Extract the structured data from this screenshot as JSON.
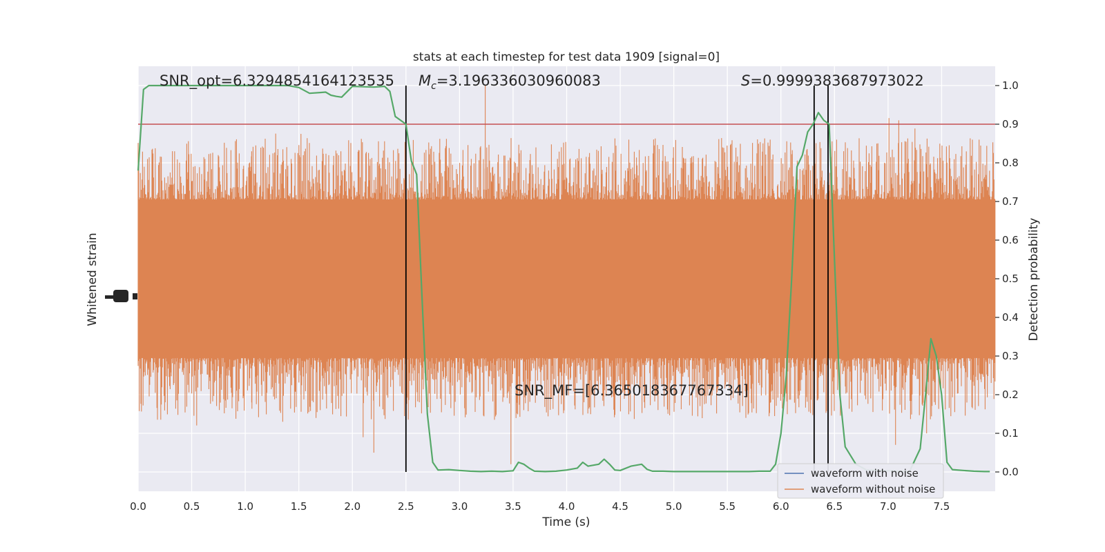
{
  "chart_data": {
    "type": "line",
    "title": "stats at each timestep for test data 1909 [signal=0]",
    "xlabel": "Time (s)",
    "ylabel_left": "Whitened strain",
    "ylabel_right": "Detection probability",
    "xlim": [
      0.0,
      8.0
    ],
    "ylim_right": [
      -0.05,
      1.05
    ],
    "x_ticks": [
      0.0,
      0.5,
      1.0,
      1.5,
      2.0,
      2.5,
      3.0,
      3.5,
      4.0,
      4.5,
      5.0,
      5.5,
      6.0,
      6.5,
      7.0,
      7.5
    ],
    "x_tick_labels": [
      "0.0",
      "0.5",
      "1.0",
      "1.5",
      "2.0",
      "2.5",
      "3.0",
      "3.5",
      "4.0",
      "4.5",
      "5.0",
      "5.5",
      "6.0",
      "6.5",
      "7.0",
      "7.5"
    ],
    "y_right_ticks": [
      0.0,
      0.1,
      0.2,
      0.3,
      0.4,
      0.5,
      0.6,
      0.7,
      0.8,
      0.9,
      1.0
    ],
    "y_right_tick_labels": [
      "0.0",
      "0.1",
      "0.2",
      "0.3",
      "0.4",
      "0.5",
      "0.6",
      "0.7",
      "0.8",
      "0.9",
      "1.0"
    ],
    "grid": true,
    "legend_placement": "lower-right",
    "annotations": {
      "snr_opt": "SNR_opt=6.3294854164123535",
      "mc_symbol": "M",
      "mc_subscript": "c",
      "mc_value": "=3.196336030960083",
      "s_symbol": "S",
      "s_value": "=0.9999383687973022",
      "snr_mf": "SNR_MF=[6.365018367767334]"
    },
    "threshold": {
      "value": 0.9,
      "color": "#c44e52"
    },
    "vlines": [
      2.5,
      6.31,
      6.44
    ],
    "series": [
      {
        "name": "waveform with noise",
        "color": "#4c72b0",
        "values": []
      },
      {
        "name": "waveform without noise",
        "color": "#dd8452",
        "band_core": [
          0.295,
          0.705
        ],
        "spike_envelope": [
          0.0,
          1.0
        ]
      },
      {
        "color": "#55a868",
        "x": [
          0.0,
          0.05,
          0.1,
          0.2,
          0.3,
          0.4,
          0.5,
          0.6,
          0.7,
          0.8,
          0.9,
          1.0,
          1.1,
          1.2,
          1.3,
          1.4,
          1.5,
          1.6,
          1.7,
          1.75,
          1.8,
          1.85,
          1.9,
          2.0,
          2.1,
          2.2,
          2.3,
          2.35,
          2.4,
          2.45,
          2.5,
          2.55,
          2.6,
          2.65,
          2.7,
          2.75,
          2.8,
          2.9,
          3.0,
          3.1,
          3.2,
          3.3,
          3.4,
          3.5,
          3.55,
          3.6,
          3.65,
          3.7,
          3.8,
          3.9,
          4.0,
          4.1,
          4.15,
          4.2,
          4.3,
          4.35,
          4.4,
          4.45,
          4.5,
          4.6,
          4.7,
          4.75,
          4.8,
          4.9,
          5.0,
          5.1,
          5.2,
          5.3,
          5.4,
          5.5,
          5.6,
          5.7,
          5.8,
          5.9,
          5.95,
          6.0,
          6.05,
          6.1,
          6.15,
          6.2,
          6.25,
          6.3,
          6.35,
          6.4,
          6.45,
          6.5,
          6.55,
          6.6,
          6.7,
          6.8,
          6.9,
          7.0,
          7.1,
          7.2,
          7.3,
          7.35,
          7.4,
          7.45,
          7.5,
          7.55,
          7.6,
          7.7,
          7.8,
          7.9,
          7.95
        ],
        "values": [
          0.78,
          0.99,
          1.0,
          1.0,
          1.0,
          1.0,
          1.0,
          1.0,
          1.0,
          1.0,
          1.0,
          1.0,
          1.0,
          1.0,
          1.0,
          1.0,
          0.995,
          0.98,
          0.982,
          0.983,
          0.975,
          0.972,
          0.97,
          0.998,
          0.997,
          0.996,
          0.998,
          0.985,
          0.92,
          0.91,
          0.9,
          0.805,
          0.77,
          0.45,
          0.15,
          0.025,
          0.005,
          0.006,
          0.004,
          0.002,
          0.001,
          0.002,
          0.001,
          0.003,
          0.025,
          0.02,
          0.01,
          0.002,
          0.001,
          0.002,
          0.005,
          0.01,
          0.025,
          0.015,
          0.02,
          0.033,
          0.02,
          0.005,
          0.004,
          0.015,
          0.02,
          0.007,
          0.002,
          0.002,
          0.001,
          0.001,
          0.001,
          0.001,
          0.001,
          0.001,
          0.001,
          0.001,
          0.002,
          0.002,
          0.02,
          0.1,
          0.25,
          0.5,
          0.79,
          0.82,
          0.88,
          0.9,
          0.93,
          0.91,
          0.9,
          0.55,
          0.2,
          0.065,
          0.02,
          0.005,
          0.004,
          0.003,
          0.002,
          0.001,
          0.06,
          0.2,
          0.345,
          0.3,
          0.2,
          0.025,
          0.006,
          0.004,
          0.002,
          0.001,
          0.001
        ]
      }
    ]
  }
}
